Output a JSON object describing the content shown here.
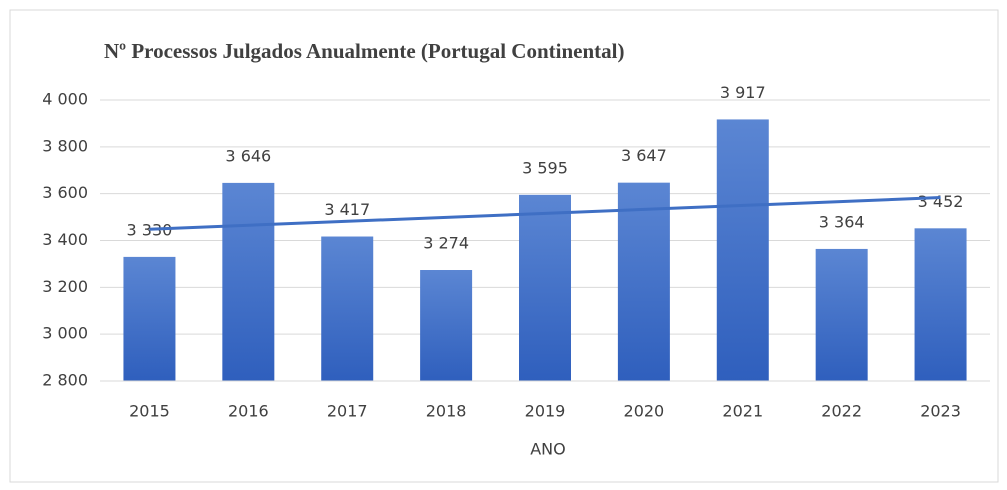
{
  "chart_data": {
    "type": "bar",
    "title": "Nº Processos Julgados Anualmente (Portugal Continental)",
    "x_label": "ANO",
    "categories": [
      "2015",
      "2016",
      "2017",
      "2018",
      "2019",
      "2020",
      "2021",
      "2022",
      "2023"
    ],
    "values": [
      3330,
      3646,
      3417,
      3274,
      3595,
      3647,
      3917,
      3364,
      3452
    ],
    "value_labels": [
      "3 330",
      "3 646",
      "3 417",
      "3 274",
      "3 595",
      "3 647",
      "3 917",
      "3 364",
      "3 452"
    ],
    "color": "#4472c4",
    "trendline": "linear",
    "ylim": [
      2800,
      4000
    ],
    "yticks": [
      {
        "value": 2800,
        "label": "2 800"
      },
      {
        "value": 3000,
        "label": "3 000"
      },
      {
        "value": 3200,
        "label": "3 200"
      },
      {
        "value": 3400,
        "label": "3 400"
      },
      {
        "value": 3600,
        "label": "3 600"
      },
      {
        "value": 3800,
        "label": "3 800"
      },
      {
        "value": 4000,
        "label": "4 000"
      }
    ],
    "grid": true
  }
}
